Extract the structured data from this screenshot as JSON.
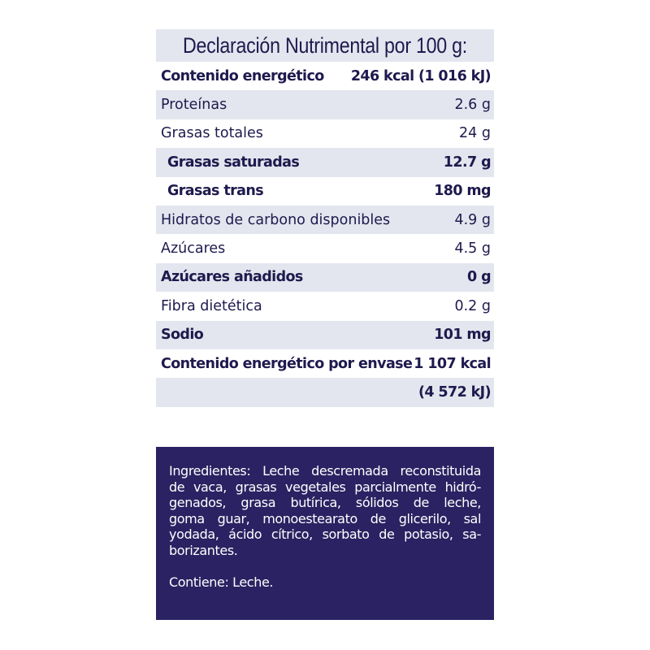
{
  "nutrition": {
    "title": "Declaración Nutrimental por 100 g:",
    "rows": [
      {
        "label": "Contenido energético",
        "value": "246 kcal (1 016 kJ)",
        "bold": true,
        "gray": false,
        "indent": false
      },
      {
        "label": "Proteínas",
        "value": "2.6 g",
        "bold": false,
        "gray": true,
        "indent": false
      },
      {
        "label": "Grasas totales",
        "value": "24 g",
        "bold": false,
        "gray": false,
        "indent": false
      },
      {
        "label": "Grasas saturadas",
        "value": "12.7 g",
        "bold": true,
        "gray": true,
        "indent": true
      },
      {
        "label": "Grasas trans",
        "value": "180 mg",
        "bold": true,
        "gray": false,
        "indent": true
      },
      {
        "label": "Hidratos de carbono disponibles",
        "value": "4.9 g",
        "bold": false,
        "gray": true,
        "indent": false
      },
      {
        "label": "Azúcares",
        "value": "4.5 g",
        "bold": false,
        "gray": false,
        "indent": false
      },
      {
        "label": "Azúcares añadidos",
        "value": "0 g",
        "bold": true,
        "gray": true,
        "indent": false
      },
      {
        "label": "Fibra dietética",
        "value": "0.2 g",
        "bold": false,
        "gray": false,
        "indent": false
      },
      {
        "label": "Sodio",
        "value": "101 mg",
        "bold": true,
        "gray": true,
        "indent": false
      },
      {
        "label": "Contenido energético por envase",
        "value": "1 107 kcal",
        "bold": true,
        "gray": false,
        "indent": false
      },
      {
        "label": "",
        "value": "(4 572 kJ)",
        "bold": true,
        "gray": true,
        "indent": false
      }
    ]
  },
  "ingredients": {
    "lines": [
      "Ingredientes: Leche descremada reconstituida",
      "de vaca, grasas vegetales parcialmente hidró-",
      "genados, grasa butírica, sólidos de leche,",
      "goma guar, monoestearato de glicerilo, sal",
      "yodada, ácido cítrico, sorbato de potasio, sa-",
      "borizantes."
    ],
    "contains": "Contiene: Leche."
  },
  "colors": {
    "text": "#1e1a4e",
    "stripe": "#e3e6ee",
    "ingredients_bg": "#2a2262"
  }
}
